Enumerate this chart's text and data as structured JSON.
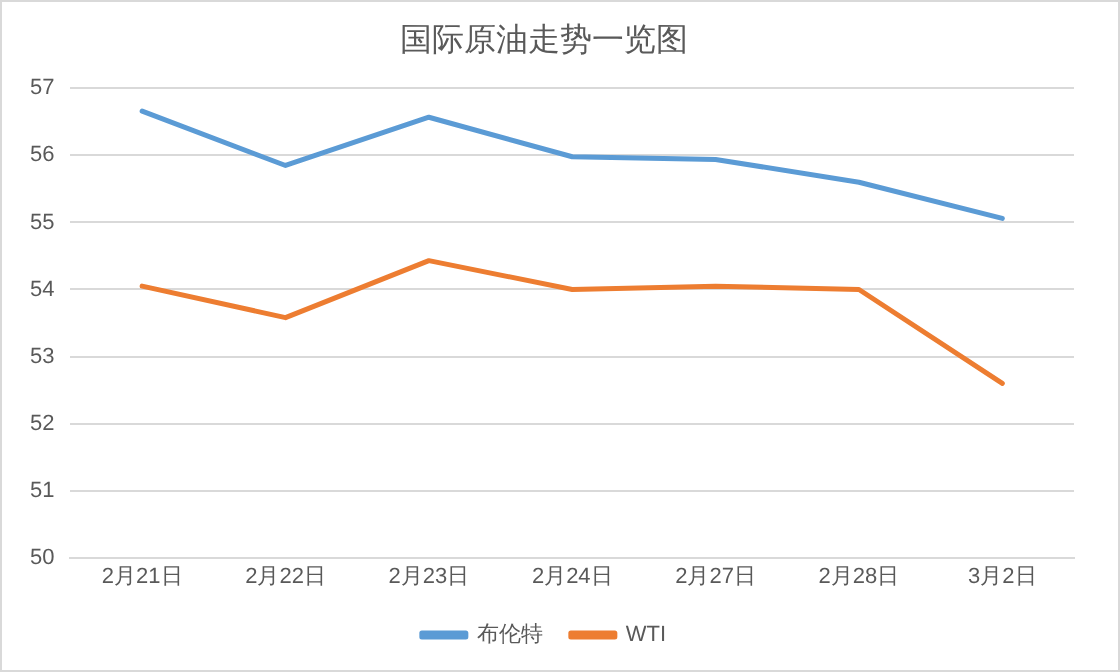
{
  "chart_data": {
    "type": "line",
    "title": "国际原油走势一览图",
    "categories": [
      "2月21日",
      "2月22日",
      "2月23日",
      "2月24日",
      "2月27日",
      "2月28日",
      "3月2日"
    ],
    "series": [
      {
        "name": "布伦特",
        "color": "#5b9bd5",
        "values": [
          56.66,
          55.85,
          56.57,
          55.98,
          55.94,
          55.6,
          55.06
        ]
      },
      {
        "name": "WTI",
        "color": "#ed7d31",
        "values": [
          54.05,
          53.58,
          54.43,
          54.0,
          54.05,
          54.0,
          52.6
        ]
      }
    ],
    "ylim": [
      50,
      57
    ],
    "yticks": [
      50,
      51,
      52,
      53,
      54,
      55,
      56,
      57
    ],
    "grid": "y",
    "legend": "bottom",
    "marker": "none",
    "line_style": "solid"
  }
}
